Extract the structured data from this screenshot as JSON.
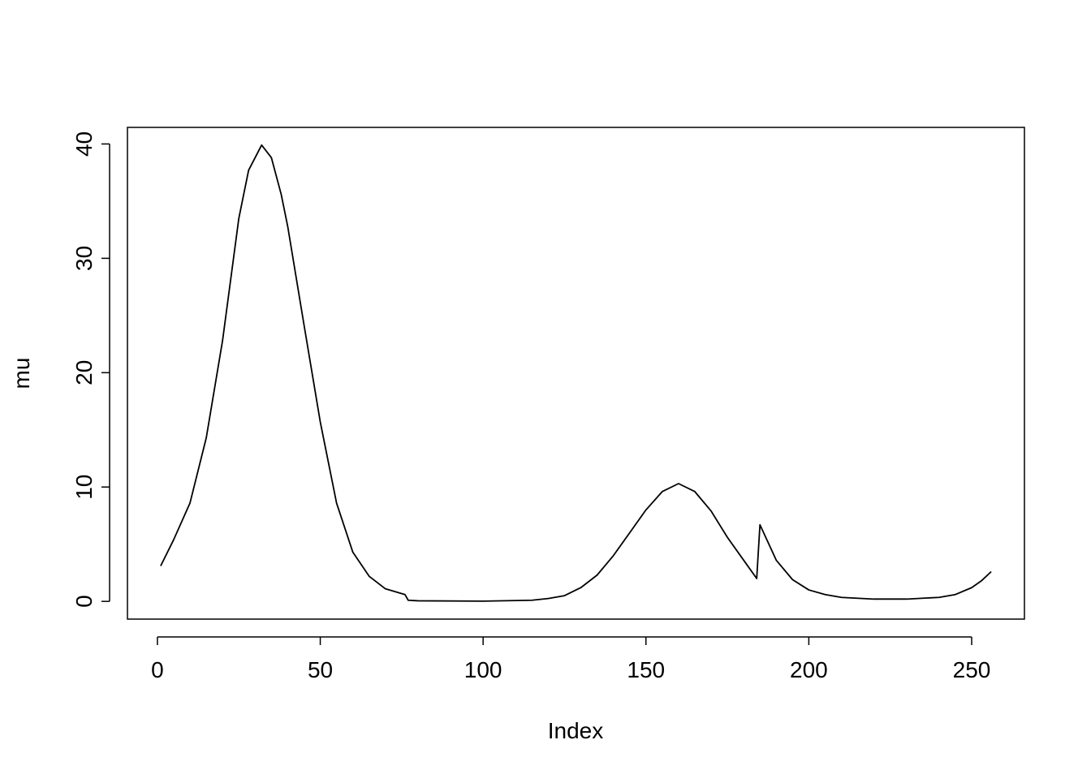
{
  "chart_data": {
    "type": "line",
    "xlabel": "Index",
    "ylabel": "mu",
    "x": [
      1,
      5,
      10,
      15,
      20,
      25,
      28,
      32,
      35,
      38,
      40,
      45,
      50,
      55,
      60,
      65,
      70,
      76,
      77,
      80,
      100,
      115,
      120,
      125,
      130,
      135,
      140,
      145,
      150,
      155,
      160,
      165,
      170,
      175,
      180,
      184,
      185,
      190,
      195,
      200,
      205,
      210,
      220,
      230,
      240,
      245,
      250,
      253,
      256
    ],
    "series": [
      {
        "name": "mu",
        "color": "#000000",
        "values": [
          3.1,
          5.4,
          8.6,
          14.3,
          22.8,
          33.5,
          37.7,
          39.9,
          38.8,
          35.6,
          32.8,
          24.2,
          15.7,
          8.6,
          4.3,
          2.2,
          1.1,
          0.6,
          0.1,
          0.05,
          0.02,
          0.1,
          0.25,
          0.5,
          1.2,
          2.3,
          4.0,
          6.0,
          8.0,
          9.6,
          10.3,
          9.6,
          7.9,
          5.6,
          3.6,
          2.0,
          6.7,
          3.6,
          1.9,
          1.0,
          0.6,
          0.35,
          0.2,
          0.2,
          0.35,
          0.6,
          1.2,
          1.8,
          2.6
        ]
      }
    ],
    "xlim": [
      -9.2,
      266.2
    ],
    "xticks": [
      0,
      50,
      100,
      150,
      200,
      250
    ],
    "ylim": [
      -1.55,
      41.45
    ],
    "yticks": [
      0,
      10,
      20,
      30,
      40
    ],
    "grid": false
  }
}
